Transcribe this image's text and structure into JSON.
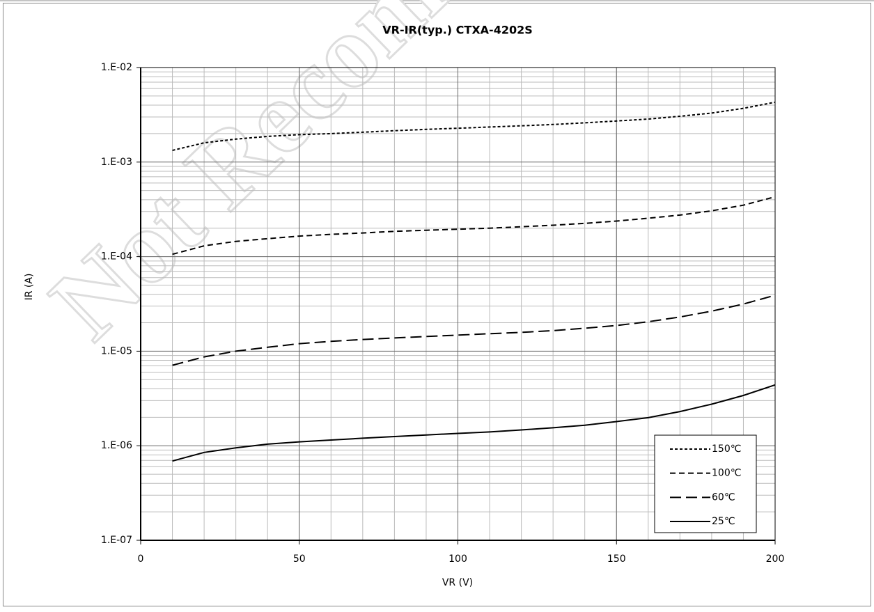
{
  "chart_data": {
    "type": "line",
    "title": "VR-IR(typ.) CTXA-4202S",
    "x_label": "VR (V)",
    "y_label": "IR (A)",
    "watermark": "Not Recommended",
    "x": [
      10,
      20,
      30,
      40,
      50,
      60,
      70,
      80,
      90,
      100,
      110,
      120,
      130,
      140,
      150,
      160,
      170,
      180,
      190,
      200
    ],
    "series": [
      {
        "name": "150℃",
        "color": "#000000",
        "dash": "4 3",
        "values": [
          0.00133,
          0.0016,
          0.00175,
          0.00187,
          0.00195,
          0.002,
          0.00207,
          0.00215,
          0.00222,
          0.00228,
          0.00235,
          0.00242,
          0.0025,
          0.0026,
          0.00272,
          0.00285,
          0.00305,
          0.0033,
          0.0037,
          0.0043
        ]
      },
      {
        "name": "100℃",
        "color": "#000000",
        "dash": "8 5",
        "values": [
          0.000106,
          0.00013,
          0.000145,
          0.000155,
          0.000165,
          0.000172,
          0.000178,
          0.000185,
          0.00019,
          0.000195,
          0.0002,
          0.000207,
          0.000215,
          0.000225,
          0.000238,
          0.000255,
          0.000275,
          0.000305,
          0.00035,
          0.00043
        ]
      },
      {
        "name": "60℃",
        "color": "#000000",
        "dash": "16 7",
        "values": [
          7.1e-06,
          8.7e-06,
          1e-05,
          1.1e-05,
          1.2e-05,
          1.27e-05,
          1.33e-05,
          1.38e-05,
          1.43e-05,
          1.48e-05,
          1.53e-05,
          1.58e-05,
          1.65e-05,
          1.75e-05,
          1.87e-05,
          2.05e-05,
          2.3e-05,
          2.65e-05,
          3.15e-05,
          3.9e-05
        ]
      },
      {
        "name": "25℃",
        "color": "#000000",
        "dash": "none",
        "values": [
          6.9e-07,
          8.5e-07,
          9.5e-07,
          1.04e-06,
          1.1e-06,
          1.15e-06,
          1.2e-06,
          1.25e-06,
          1.3e-06,
          1.35e-06,
          1.4e-06,
          1.47e-06,
          1.55e-06,
          1.65e-06,
          1.8e-06,
          1.98e-06,
          2.3e-06,
          2.75e-06,
          3.4e-06,
          4.4e-06
        ]
      }
    ],
    "xlim": [
      0,
      200
    ],
    "xticks": [
      0,
      50,
      100,
      150,
      200
    ],
    "ylim": [
      1e-07,
      0.01
    ],
    "log_y": true,
    "yticks": [
      {
        "value": 1e-07,
        "label": "1.E-07"
      },
      {
        "value": 1e-06,
        "label": "1.E-06"
      },
      {
        "value": 1e-05,
        "label": "1.E-05"
      },
      {
        "value": 0.0001,
        "label": "1.E-04"
      },
      {
        "value": 0.001,
        "label": "1.E-03"
      },
      {
        "value": 0.01,
        "label": "1.E-02"
      }
    ],
    "grid": true,
    "minor_grid": true,
    "legend": "lower right"
  }
}
